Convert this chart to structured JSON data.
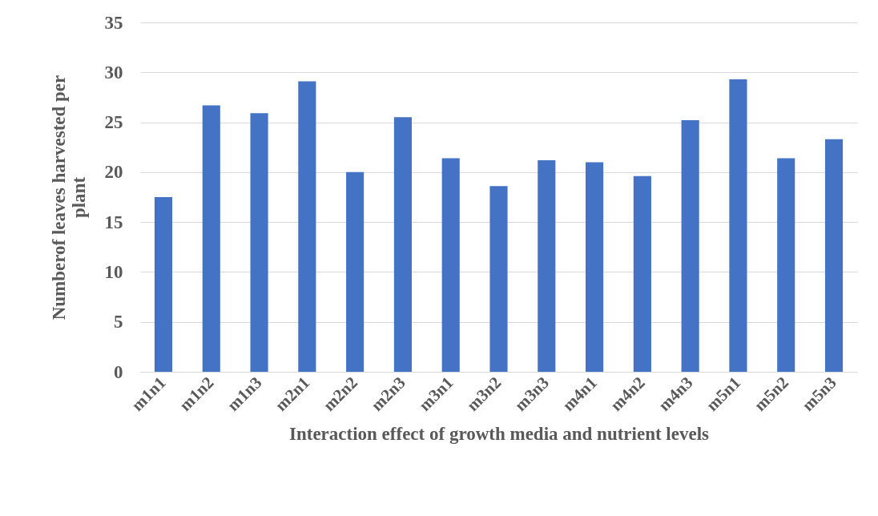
{
  "chart_data": {
    "type": "bar",
    "xlabel": "Interaction effect of growth media and nutrient levels",
    "ylabel": "Numberof leaves harvested per plant",
    "categories": [
      "m1n1",
      "m1n2",
      "m1n3",
      "m2n1",
      "m2n2",
      "m2n3",
      "m3n1",
      "m3n2",
      "m3n3",
      "m4n1",
      "m4n2",
      "m4n3",
      "m5n1",
      "m5n2",
      "m5n3"
    ],
    "values": [
      17.5,
      26.7,
      25.9,
      29.1,
      20.0,
      25.5,
      21.4,
      18.6,
      21.2,
      21.0,
      19.6,
      25.2,
      29.3,
      21.4,
      23.3
    ],
    "color": "#4472c4",
    "ylim": [
      0,
      35
    ],
    "yticks": [
      0,
      5,
      10,
      15,
      20,
      25,
      30,
      35
    ],
    "grid": "y"
  }
}
